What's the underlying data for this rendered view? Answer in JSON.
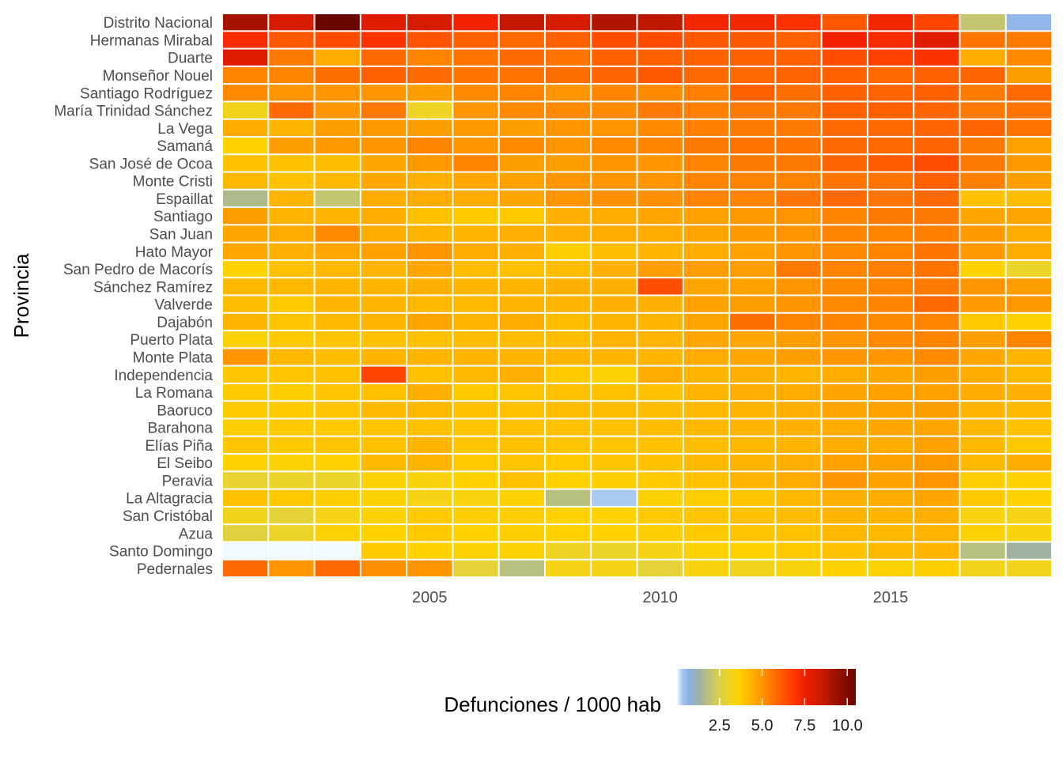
{
  "chart_data": {
    "type": "heatmap",
    "title": "",
    "xlabel": "",
    "ylabel": "Provincia",
    "x": [
      2001,
      2002,
      2003,
      2004,
      2005,
      2006,
      2007,
      2008,
      2009,
      2010,
      2011,
      2012,
      2013,
      2014,
      2015,
      2016,
      2017,
      2018
    ],
    "x_ticks": [
      2005,
      2010,
      2015
    ],
    "provinces": [
      "Distrito Nacional",
      "Hermanas Mirabal",
      "Duarte",
      "Monseñor Nouel",
      "Santiago Rodríguez",
      "María Trinidad Sánchez",
      "La Vega",
      "Samaná",
      "San José de Ocoa",
      "Monte Cristi",
      "Espaillat",
      "Santiago",
      "San Juan",
      "Hato Mayor",
      "San Pedro de Macorís",
      "Sánchez Ramírez",
      "Valverde",
      "Dajabón",
      "Puerto Plata",
      "Monte Plata",
      "Independencia",
      "La Romana",
      "Baoruco",
      "Barahona",
      "Elías Piña",
      "El Seibo",
      "Peravia",
      "La Altagracia",
      "San Cristóbal",
      "Azua",
      "Santo Domingo",
      "Pedernales"
    ],
    "values": [
      [
        9.2,
        8.2,
        10.5,
        8.0,
        8.2,
        7.4,
        8.6,
        8.2,
        9.0,
        8.7,
        7.3,
        7.3,
        7.0,
        6.2,
        7.3,
        6.6,
        2.0,
        0.6
      ],
      [
        7.2,
        6.2,
        6.5,
        7.0,
        6.3,
        6.0,
        5.8,
        6.0,
        6.4,
        6.5,
        6.2,
        6.2,
        6.0,
        7.4,
        7.2,
        7.9,
        5.6,
        5.5
      ],
      [
        7.9,
        5.5,
        4.5,
        5.8,
        5.3,
        5.6,
        5.8,
        5.6,
        6.0,
        6.0,
        6.0,
        6.0,
        6.0,
        6.4,
        6.7,
        7.0,
        4.5,
        5.2
      ],
      [
        5.3,
        5.3,
        5.7,
        6.0,
        5.8,
        5.6,
        5.6,
        5.7,
        5.9,
        6.2,
        5.8,
        5.8,
        5.9,
        6.0,
        5.8,
        6.0,
        5.9,
        4.8
      ],
      [
        5.2,
        5.0,
        5.0,
        5.0,
        4.8,
        5.2,
        5.3,
        5.0,
        5.3,
        5.2,
        5.4,
        6.0,
        5.7,
        6.0,
        5.9,
        6.0,
        5.5,
        5.8
      ],
      [
        3.2,
        5.8,
        5.0,
        5.5,
        3.1,
        5.0,
        5.2,
        5.2,
        5.2,
        5.5,
        5.4,
        5.5,
        5.5,
        6.0,
        6.0,
        5.9,
        5.5,
        5.6
      ],
      [
        4.5,
        4.3,
        4.8,
        4.9,
        4.8,
        4.9,
        4.8,
        5.0,
        5.0,
        5.2,
        5.4,
        5.5,
        5.5,
        5.8,
        5.8,
        5.9,
        5.9,
        5.6
      ],
      [
        3.6,
        4.8,
        4.9,
        5.0,
        5.3,
        5.0,
        5.2,
        5.0,
        5.2,
        5.3,
        5.5,
        5.6,
        5.6,
        5.8,
        5.8,
        5.9,
        5.5,
        4.7
      ],
      [
        4.0,
        4.0,
        4.1,
        4.6,
        4.9,
        5.3,
        4.8,
        4.8,
        5.0,
        5.0,
        5.3,
        5.5,
        5.5,
        5.9,
        6.1,
        6.4,
        5.5,
        4.9
      ],
      [
        4.2,
        4.0,
        4.2,
        4.6,
        4.4,
        4.6,
        4.7,
        5.0,
        5.0,
        5.0,
        5.3,
        5.3,
        5.3,
        5.6,
        5.6,
        6.0,
        5.4,
        4.8
      ],
      [
        1.6,
        4.3,
        2.0,
        4.5,
        4.5,
        4.5,
        4.6,
        5.0,
        5.1,
        5.1,
        5.3,
        5.3,
        5.6,
        5.8,
        5.6,
        5.8,
        4.0,
        4.1
      ],
      [
        4.8,
        4.3,
        4.3,
        4.5,
        4.0,
        3.8,
        3.8,
        4.4,
        4.5,
        4.6,
        4.7,
        4.9,
        5.0,
        5.3,
        5.5,
        5.5,
        4.6,
        4.6
      ],
      [
        4.6,
        4.5,
        5.2,
        4.5,
        4.3,
        4.3,
        4.4,
        4.4,
        4.5,
        4.5,
        4.6,
        4.9,
        5.0,
        5.3,
        5.3,
        5.4,
        4.9,
        4.5
      ],
      [
        4.6,
        4.4,
        4.6,
        4.7,
        5.0,
        4.5,
        4.4,
        3.7,
        4.1,
        4.3,
        4.5,
        4.7,
        5.0,
        5.2,
        5.3,
        5.6,
        4.9,
        4.5
      ],
      [
        3.6,
        4.0,
        4.2,
        4.3,
        4.6,
        4.1,
        4.0,
        4.1,
        4.4,
        4.8,
        4.8,
        4.8,
        5.5,
        5.3,
        5.4,
        5.6,
        3.6,
        3.0
      ],
      [
        4.2,
        4.2,
        4.3,
        4.3,
        4.4,
        4.3,
        4.3,
        4.4,
        4.4,
        6.4,
        4.6,
        4.7,
        5.0,
        5.2,
        5.3,
        5.5,
        5.0,
        4.8
      ],
      [
        4.1,
        3.8,
        4.3,
        4.3,
        4.2,
        4.2,
        4.3,
        4.3,
        4.4,
        4.4,
        4.7,
        4.8,
        5.0,
        5.2,
        5.3,
        5.8,
        4.9,
        4.9
      ],
      [
        4.3,
        3.9,
        4.2,
        4.3,
        4.6,
        4.3,
        4.5,
        4.1,
        4.3,
        4.3,
        4.6,
        5.7,
        5.3,
        5.3,
        5.2,
        5.3,
        3.8,
        3.6
      ],
      [
        3.5,
        3.8,
        3.9,
        4.0,
        4.0,
        4.1,
        4.1,
        4.1,
        4.3,
        4.3,
        4.6,
        4.6,
        4.8,
        5.0,
        5.2,
        5.3,
        4.8,
        5.3
      ],
      [
        5.0,
        4.2,
        4.1,
        4.3,
        4.3,
        4.3,
        4.3,
        4.3,
        4.3,
        4.3,
        4.5,
        4.6,
        4.8,
        5.0,
        5.0,
        5.2,
        4.6,
        4.3
      ],
      [
        3.9,
        3.9,
        4.0,
        6.6,
        4.0,
        4.2,
        4.4,
        3.8,
        3.5,
        4.5,
        4.3,
        4.4,
        4.3,
        4.5,
        4.6,
        4.8,
        4.5,
        4.2
      ],
      [
        3.8,
        3.7,
        3.9,
        4.0,
        4.4,
        3.8,
        3.9,
        4.0,
        4.0,
        4.0,
        4.3,
        4.4,
        4.5,
        4.6,
        4.7,
        4.7,
        4.5,
        4.4
      ],
      [
        3.8,
        3.8,
        3.9,
        4.2,
        4.2,
        4.0,
        4.0,
        4.1,
        4.1,
        4.1,
        4.2,
        4.3,
        4.4,
        4.6,
        4.7,
        4.8,
        4.3,
        4.2
      ],
      [
        3.7,
        3.8,
        3.8,
        3.9,
        4.0,
        3.9,
        4.0,
        4.0,
        4.0,
        4.1,
        4.2,
        4.3,
        4.4,
        4.5,
        4.6,
        4.6,
        4.2,
        4.0
      ],
      [
        3.9,
        3.8,
        3.9,
        4.0,
        4.3,
        3.9,
        4.0,
        3.9,
        3.9,
        4.0,
        4.1,
        4.2,
        4.3,
        4.5,
        4.5,
        4.7,
        4.2,
        3.8
      ],
      [
        3.6,
        3.5,
        3.6,
        4.2,
        4.3,
        3.8,
        3.9,
        3.8,
        3.9,
        4.0,
        4.2,
        4.3,
        4.4,
        4.7,
        4.7,
        4.9,
        4.2,
        4.5
      ],
      [
        2.9,
        3.0,
        3.0,
        3.5,
        3.4,
        3.6,
        4.0,
        3.6,
        3.7,
        3.8,
        4.0,
        4.3,
        4.5,
        5.0,
        4.7,
        5.0,
        3.7,
        3.6
      ],
      [
        4.0,
        3.8,
        3.7,
        3.5,
        3.3,
        3.4,
        3.5,
        1.8,
        0.3,
        3.5,
        3.7,
        3.9,
        4.2,
        4.4,
        4.5,
        4.6,
        3.8,
        3.6
      ],
      [
        3.2,
        2.8,
        3.3,
        3.5,
        3.8,
        3.7,
        3.7,
        3.6,
        3.6,
        3.8,
        3.9,
        4.0,
        4.1,
        4.3,
        4.3,
        4.4,
        3.4,
        3.3
      ],
      [
        2.7,
        3.0,
        3.5,
        3.6,
        3.8,
        3.6,
        3.7,
        3.6,
        3.6,
        3.7,
        3.8,
        3.9,
        4.0,
        4.2,
        4.2,
        4.3,
        3.5,
        3.4
      ],
      [
        0.0,
        0.0,
        0.0,
        3.8,
        3.6,
        3.5,
        3.5,
        3.1,
        3.0,
        3.3,
        3.5,
        3.6,
        3.8,
        4.0,
        4.2,
        4.3,
        1.8,
        1.3
      ],
      [
        5.8,
        5.0,
        5.8,
        5.1,
        5.0,
        2.8,
        1.8,
        3.3,
        3.3,
        2.8,
        3.4,
        3.2,
        3.4,
        3.6,
        3.5,
        3.7,
        3.2,
        3.2
      ]
    ],
    "legend": {
      "title": "Defunciones / 1000 hab",
      "position": "bottom",
      "ticks": [
        2.5,
        5.0,
        7.5,
        10.0
      ],
      "tick_labels": [
        "2.5",
        "5.0",
        "7.5",
        "10.0"
      ],
      "range": [
        0,
        10.5
      ]
    },
    "colors": {
      "scale": [
        {
          "v": 0.0,
          "c": "#f0fbff"
        },
        {
          "v": 0.3,
          "c": "#a9c8f2"
        },
        {
          "v": 0.7,
          "c": "#8ab0e6"
        },
        {
          "v": 1.3,
          "c": "#9fb2a0"
        },
        {
          "v": 1.8,
          "c": "#b8c07f"
        },
        {
          "v": 2.3,
          "c": "#d4cc5a"
        },
        {
          "v": 3.0,
          "c": "#ecd42a"
        },
        {
          "v": 3.6,
          "c": "#ffd200"
        },
        {
          "v": 4.3,
          "c": "#ffb400"
        },
        {
          "v": 5.0,
          "c": "#ff9500"
        },
        {
          "v": 5.8,
          "c": "#ff6a00"
        },
        {
          "v": 6.8,
          "c": "#ff3c00"
        },
        {
          "v": 7.5,
          "c": "#f01e00"
        },
        {
          "v": 8.5,
          "c": "#c91a00"
        },
        {
          "v": 9.3,
          "c": "#a01200"
        },
        {
          "v": 10.5,
          "c": "#6a0600"
        }
      ],
      "text": "#4d4d4d",
      "grid": "#ebebeb"
    }
  }
}
